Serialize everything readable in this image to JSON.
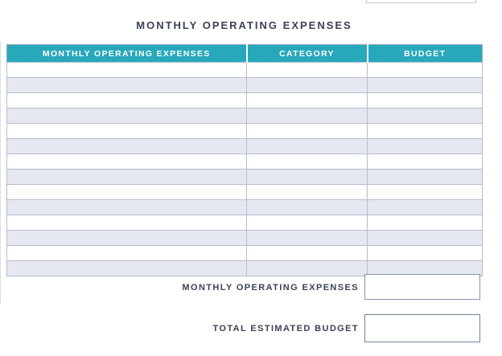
{
  "title": "MONTHLY OPERATING EXPENSES",
  "top_partial_field": {
    "value": ""
  },
  "table": {
    "columns": [
      "MONTHLY OPERATING EXPENSES",
      "CATEGORY",
      "BUDGET"
    ],
    "rows": [
      {
        "expense": "",
        "category": "",
        "budget": ""
      },
      {
        "expense": "",
        "category": "",
        "budget": ""
      },
      {
        "expense": "",
        "category": "",
        "budget": ""
      },
      {
        "expense": "",
        "category": "",
        "budget": ""
      },
      {
        "expense": "",
        "category": "",
        "budget": ""
      },
      {
        "expense": "",
        "category": "",
        "budget": ""
      },
      {
        "expense": "",
        "category": "",
        "budget": ""
      },
      {
        "expense": "",
        "category": "",
        "budget": ""
      },
      {
        "expense": "",
        "category": "",
        "budget": ""
      },
      {
        "expense": "",
        "category": "",
        "budget": ""
      },
      {
        "expense": "",
        "category": "",
        "budget": ""
      },
      {
        "expense": "",
        "category": "",
        "budget": ""
      },
      {
        "expense": "",
        "category": "",
        "budget": ""
      },
      {
        "expense": "",
        "category": "",
        "budget": ""
      }
    ]
  },
  "totals": {
    "monthly_label": "MONTHLY OPERATING EXPENSES",
    "monthly_value": "",
    "grand_label": "TOTAL ESTIMATED BUDGET",
    "grand_value": ""
  },
  "colors": {
    "header_teal": "#28a8bb",
    "header_text": "#ffffff",
    "alt_row": "#e6e8f1",
    "grid_border": "#b4bdcd",
    "outer_border": "#9aa5b8",
    "label_text": "#3a4254",
    "monthly_box_border": "#8593a8",
    "grand_box_border": "#76849b"
  }
}
